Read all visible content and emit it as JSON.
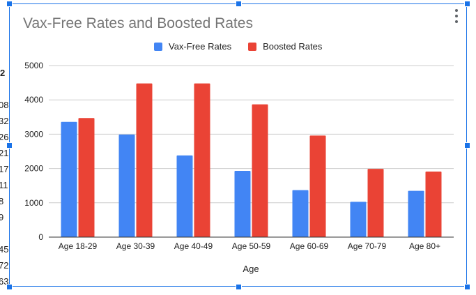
{
  "spreadsheet": {
    "row_fragments": [
      "2",
      "08",
      "32",
      "26",
      "21",
      "17",
      "11",
      "8",
      "9",
      "45",
      "72",
      "63"
    ]
  },
  "chart_data": {
    "type": "bar",
    "title": "Vax-Free Rates and Boosted Rates",
    "xlabel": "Age",
    "ylabel": "",
    "categories": [
      "Age 18-29",
      "Age 30-39",
      "Age 40-49",
      "Age 50-59",
      "Age 60-69",
      "Age 70-79",
      "Age 80+"
    ],
    "series": [
      {
        "name": "Vax-Free Rates",
        "color": "#4285f4",
        "values": [
          3360,
          2990,
          2380,
          1930,
          1370,
          1030,
          1350
        ]
      },
      {
        "name": "Boosted Rates",
        "color": "#ea4335",
        "values": [
          3470,
          4480,
          4480,
          3870,
          2960,
          1990,
          1910
        ]
      }
    ],
    "ylim": [
      0,
      5000
    ],
    "yticks": [
      "0",
      "1000",
      "2000",
      "3000",
      "4000",
      "5000"
    ],
    "grid": true,
    "legend_position": "top"
  },
  "menu": {
    "icon": "more-vert-icon"
  }
}
